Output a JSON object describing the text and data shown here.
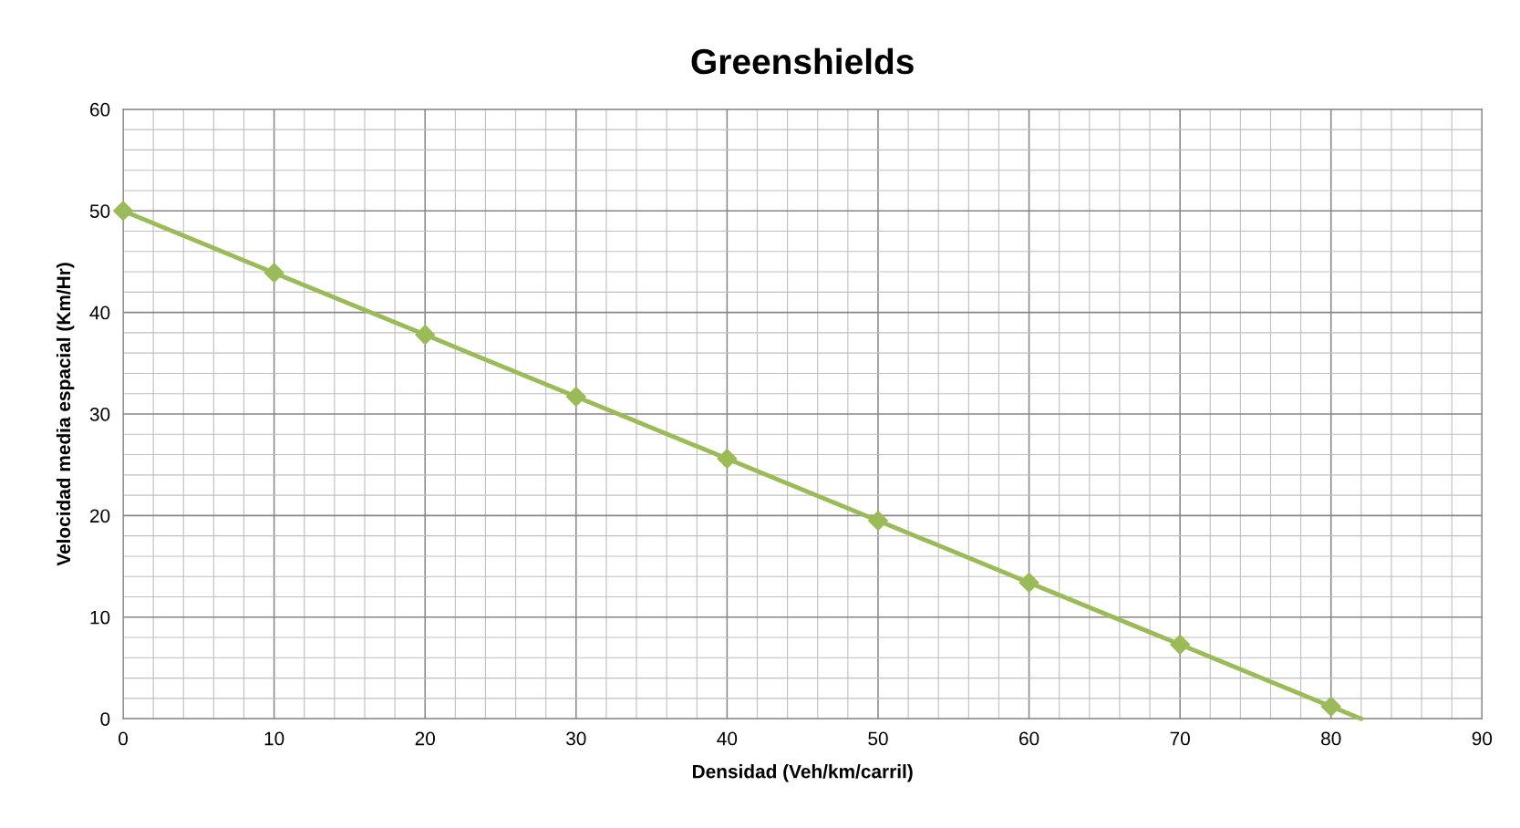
{
  "chart_data": {
    "type": "line",
    "title": "Greenshields",
    "xlabel": "Densidad (Veh/km/carril)",
    "ylabel": "Velocidad media espacial (Km/Hr)",
    "xlim": [
      0,
      90
    ],
    "xticks": [
      0,
      10,
      20,
      30,
      40,
      50,
      60,
      70,
      80,
      90
    ],
    "ylim": [
      0,
      60
    ],
    "yticks": [
      0,
      10,
      20,
      30,
      40,
      50,
      60
    ],
    "grid": true,
    "series": [
      {
        "color": "#9bbb59",
        "marker": "none",
        "x": [
          0,
          10,
          20,
          30,
          40,
          50,
          60,
          70,
          80,
          82
        ],
        "values": [
          50,
          43.9,
          37.8,
          31.7,
          25.6,
          19.5,
          13.4,
          7.3,
          1.2,
          0
        ]
      },
      {
        "type": "scatter",
        "color": "#9bbb59",
        "marker": "diamond",
        "x": [
          0,
          10,
          20,
          30,
          40,
          50,
          60,
          70,
          80
        ],
        "values": [
          50,
          43.9,
          37.8,
          31.7,
          25.6,
          19.5,
          13.4,
          7.3,
          1.2
        ]
      }
    ]
  }
}
